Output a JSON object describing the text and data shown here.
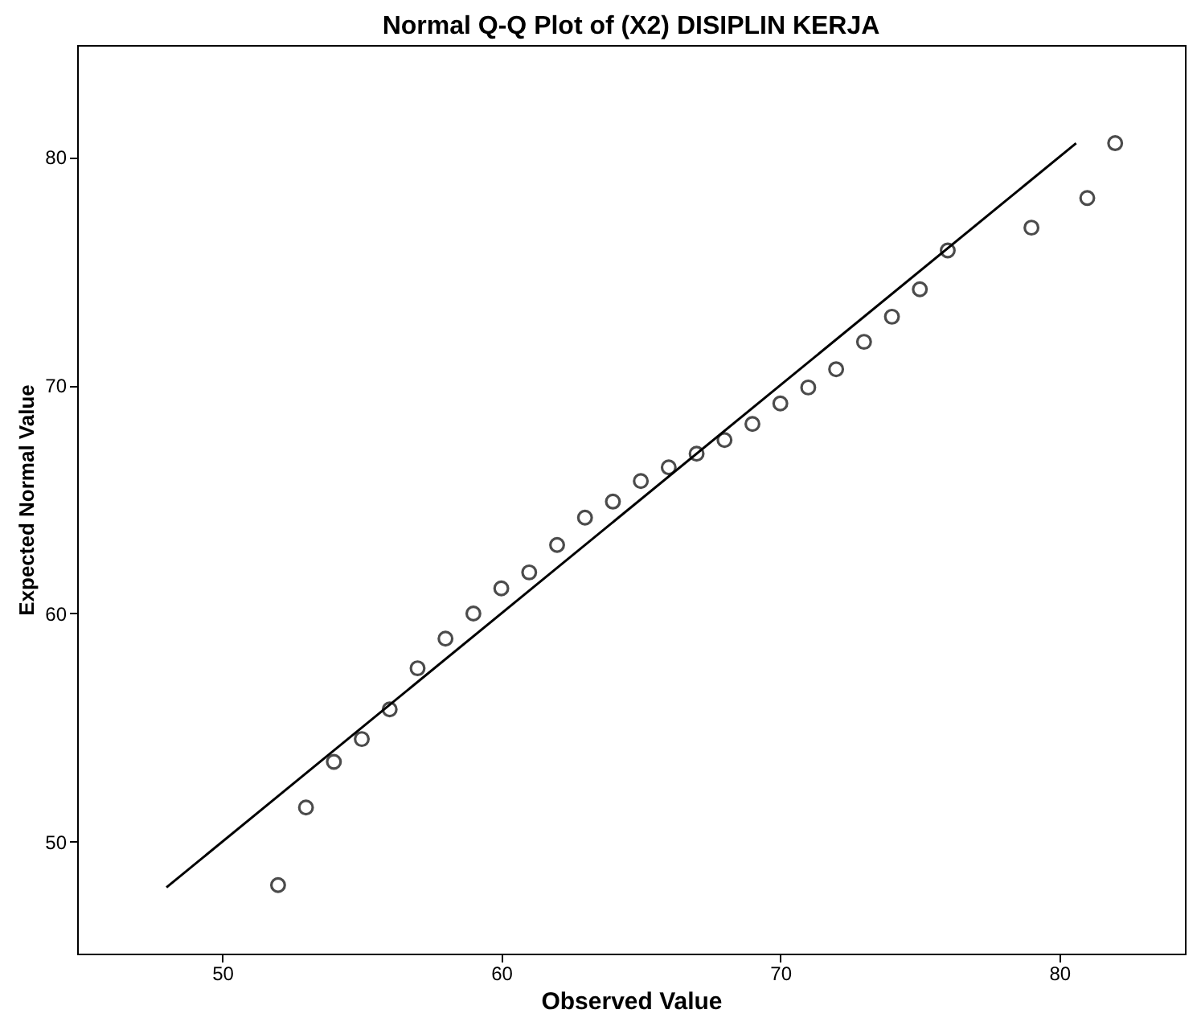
{
  "chart_data": {
    "type": "scatter",
    "title": "Normal Q-Q Plot of (X2) DISIPLIN KERJA",
    "xlabel": "Observed Value",
    "ylabel": "Expected Normal Value",
    "xlim": [
      44.8,
      84.5
    ],
    "ylim": [
      45.1,
      84.9
    ],
    "xticks": [
      50,
      60,
      70,
      80
    ],
    "yticks": [
      50,
      60,
      70,
      80
    ],
    "grid": false,
    "series": [
      {
        "color": "#000000",
        "marker": "circle",
        "x": [
          52,
          53,
          54,
          55,
          56,
          57,
          58,
          59,
          60,
          61,
          62,
          63,
          64,
          65,
          66,
          67,
          68,
          69,
          70,
          71,
          72,
          73,
          74,
          75,
          76,
          79,
          81,
          82
        ],
        "values": [
          48.1,
          51.5,
          53.5,
          54.5,
          55.8,
          57.6,
          58.9,
          60.0,
          61.1,
          61.8,
          63.0,
          64.2,
          64.9,
          65.8,
          66.4,
          67.0,
          67.6,
          68.3,
          69.2,
          69.9,
          70.7,
          71.9,
          73.0,
          74.2,
          75.9,
          76.9,
          78.2,
          80.6
        ]
      },
      {
        "type": "line",
        "color": "#000000",
        "x": [
          48,
          80.6
        ],
        "values": [
          48,
          80.6
        ]
      }
    ]
  }
}
